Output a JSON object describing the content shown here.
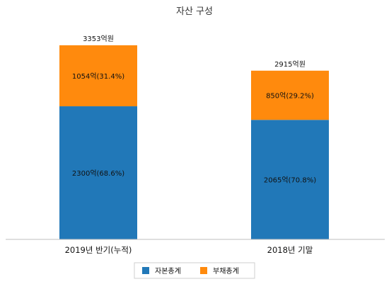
{
  "chart_data": {
    "type": "bar",
    "stacked": true,
    "title": "자산 구성",
    "categories": [
      "2019년 반기(누적)",
      "2018년 기말"
    ],
    "series": [
      {
        "name": "자본총계",
        "color": "#2178b8",
        "values": [
          2300,
          2065
        ],
        "labels": [
          "2300억(68.6%)",
          "2065억(70.8%)"
        ]
      },
      {
        "name": "부채총계",
        "color": "#ff8a0d",
        "values": [
          1054,
          850
        ],
        "labels": [
          "1054억(31.4%)",
          "850억(29.2%)"
        ]
      }
    ],
    "totals": [
      3353,
      2915
    ],
    "total_labels": [
      "3353억원",
      "2915억원"
    ],
    "ylim": [
      0,
      3600
    ],
    "grid": false,
    "legend_position": "bottom"
  }
}
